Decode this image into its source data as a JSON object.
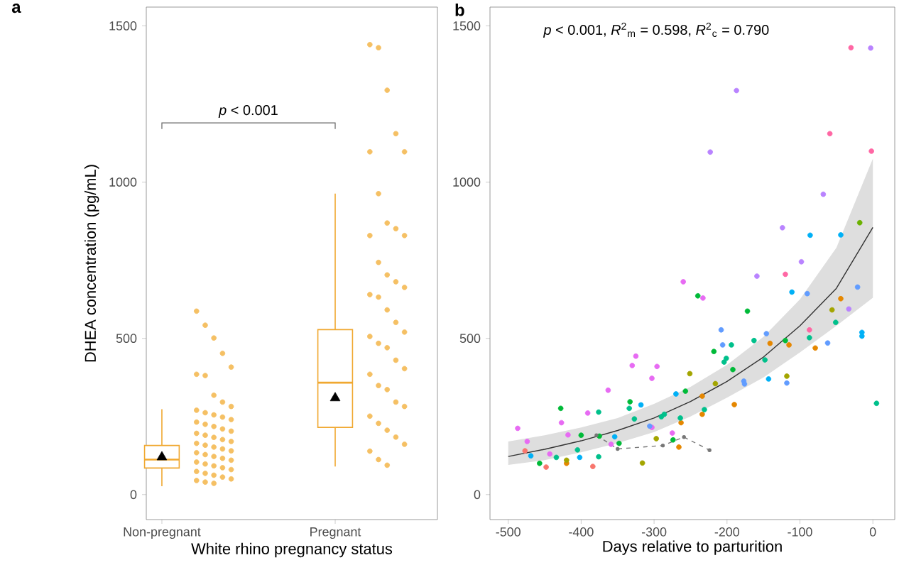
{
  "chart_data": [
    {
      "type": "box",
      "title": "a",
      "xlabel": "White rhino pregnancy status",
      "ylabel": "DHEA concentration (pg/mL)",
      "categories": [
        "Non-pregnant",
        "Pregnant"
      ],
      "color": "#f0a830",
      "marker": "circle",
      "boxes": [
        {
          "low": 27,
          "q1": 85,
          "median": 112,
          "q3": 157,
          "high": 273,
          "mean": 120
        },
        {
          "low": 90,
          "q1": 215,
          "median": 358,
          "q3": 528,
          "high": 963,
          "mean": 309
        }
      ],
      "series": [
        {
          "type": "scatter",
          "color": "#f5c064",
          "x": [
            "Non-pregnant",
            "Non-pregnant",
            "Non-pregnant",
            "Non-pregnant",
            "Non-pregnant",
            "Non-pregnant",
            "Non-pregnant",
            "Non-pregnant",
            "Non-pregnant",
            "Non-pregnant",
            "Non-pregnant",
            "Non-pregnant",
            "Non-pregnant",
            "Non-pregnant",
            "Non-pregnant",
            "Non-pregnant",
            "Non-pregnant",
            "Non-pregnant",
            "Non-pregnant",
            "Non-pregnant",
            "Non-pregnant",
            "Non-pregnant",
            "Non-pregnant",
            "Non-pregnant",
            "Non-pregnant",
            "Non-pregnant",
            "Non-pregnant",
            "Non-pregnant",
            "Non-pregnant",
            "Non-pregnant",
            "Non-pregnant",
            "Non-pregnant",
            "Non-pregnant",
            "Non-pregnant",
            "Non-pregnant",
            "Non-pregnant",
            "Non-pregnant",
            "Non-pregnant",
            "Non-pregnant",
            "Non-pregnant",
            "Non-pregnant",
            "Non-pregnant",
            "Non-pregnant",
            "Non-pregnant",
            "Non-pregnant",
            "Non-pregnant",
            "Non-pregnant",
            "Non-pregnant"
          ],
          "values": [
            587,
            542,
            501,
            452,
            408,
            385,
            381,
            318,
            296,
            282,
            270,
            262,
            255,
            248,
            240,
            232,
            225,
            218,
            210,
            203,
            196,
            190,
            183,
            176,
            170,
            164,
            158,
            152,
            146,
            140,
            134,
            128,
            122,
            116,
            110,
            104,
            98,
            92,
            86,
            80,
            74,
            68,
            62,
            56,
            50,
            45,
            40,
            36
          ]
        },
        {
          "type": "scatter",
          "color": "#f5c064",
          "x": [
            "Pregnant",
            "Pregnant",
            "Pregnant",
            "Pregnant",
            "Pregnant",
            "Pregnant",
            "Pregnant",
            "Pregnant",
            "Pregnant",
            "Pregnant",
            "Pregnant",
            "Pregnant",
            "Pregnant",
            "Pregnant",
            "Pregnant",
            "Pregnant",
            "Pregnant",
            "Pregnant",
            "Pregnant",
            "Pregnant",
            "Pregnant",
            "Pregnant",
            "Pregnant",
            "Pregnant",
            "Pregnant",
            "Pregnant",
            "Pregnant",
            "Pregnant",
            "Pregnant",
            "Pregnant",
            "Pregnant",
            "Pregnant",
            "Pregnant",
            "Pregnant",
            "Pregnant",
            "Pregnant",
            "Pregnant",
            "Pregnant"
          ],
          "values": [
            1440,
            1430,
            1294,
            1155,
            1097,
            1097,
            963,
            869,
            851,
            829,
            829,
            743,
            703,
            681,
            663,
            640,
            632,
            591,
            551,
            520,
            506,
            484,
            470,
            430,
            403,
            385,
            349,
            336,
            296,
            282,
            251,
            228,
            206,
            184,
            161,
            139,
            112,
            94
          ]
        }
      ],
      "ylim": [
        -80,
        1560
      ],
      "yticks": [
        0,
        500,
        1000,
        1500
      ],
      "annotations": [
        "*p* < 0.001"
      ]
    },
    {
      "type": "scatter",
      "title": "b",
      "xlabel": "Days relative to parturition",
      "marker": "circle",
      "xlim": [
        -525,
        30
      ],
      "xticks": [
        -500,
        -400,
        -300,
        -200,
        -100,
        0
      ],
      "ylim": [
        -80,
        1560
      ],
      "yticks": [
        0,
        500,
        1000,
        1500
      ],
      "annotations": [
        "*p* < 0.001, *R*$^{2}$$_{m}$ = 0.598, *R*$^{2}$$_{c}$ = 0.790"
      ],
      "series": [
        {
          "type": "line",
          "color": "#333333",
          "marker": "none",
          "x": [
            -500,
            -450,
            -400,
            -350,
            -300,
            -250,
            -200,
            -150,
            -100,
            -50,
            0
          ],
          "values": [
            122,
            145,
            172,
            205,
            245,
            298,
            362,
            440,
            540,
            660,
            855
          ],
          "lower": [
            95,
            110,
            135,
            165,
            200,
            250,
            310,
            375,
            455,
            540,
            630
          ],
          "upper": [
            170,
            190,
            215,
            245,
            290,
            345,
            415,
            505,
            625,
            790,
            1075
          ]
        },
        {
          "type": "scatter",
          "color": "#ff67a4",
          "x": [
            -30,
            -59,
            -2,
            -120,
            -87
          ],
          "values": [
            1430,
            1155,
            1099,
            705,
            527
          ]
        },
        {
          "type": "scatter",
          "color": "#b983ff",
          "x": [
            -3,
            -187,
            -223,
            -68,
            -124,
            -98,
            -159,
            -33
          ],
          "values": [
            1429,
            1293,
            1096,
            961,
            854,
            745,
            699,
            594
          ]
        },
        {
          "type": "scatter",
          "color": "#6bb100",
          "x": [
            -18
          ],
          "values": [
            870
          ]
        },
        {
          "type": "scatter",
          "color": "#00b0f6",
          "x": [
            -86,
            -44,
            -111,
            -15,
            -15,
            -143,
            -270,
            -318,
            -354,
            -469,
            -402
          ],
          "values": [
            830,
            831,
            648,
            519,
            507,
            370,
            322,
            287,
            185,
            124,
            119
          ]
        },
        {
          "type": "scatter",
          "color": "#e76bf3",
          "x": [
            -260,
            -233,
            -325,
            -330,
            -296,
            -303,
            -363,
            -391,
            -303,
            -427,
            -487,
            -418,
            -359,
            -474,
            -443,
            -275
          ],
          "values": [
            681,
            629,
            443,
            413,
            410,
            372,
            334,
            261,
            215,
            230,
            212,
            191,
            161,
            170,
            130,
            197
          ]
        },
        {
          "type": "scatter",
          "color": "#00ba38",
          "x": [
            -240,
            -172,
            -120,
            -218,
            -192,
            -257,
            -428,
            -333,
            -400,
            -375,
            -348,
            -457,
            -274
          ],
          "values": [
            636,
            587,
            493,
            458,
            400,
            331,
            276,
            297,
            190,
            187,
            164,
            100,
            175
          ]
        },
        {
          "type": "scatter",
          "color": "#619cff",
          "x": [
            -90,
            -21,
            -208,
            -146,
            -62,
            -206,
            -177,
            -176,
            -118,
            -306
          ],
          "values": [
            643,
            664,
            527,
            515,
            485,
            479,
            363,
            354,
            357,
            219
          ]
        },
        {
          "type": "scatter",
          "color": "#e58700",
          "x": [
            -44,
            -141,
            -115,
            -79,
            -234,
            -190,
            -234,
            -263,
            -420,
            -266
          ],
          "values": [
            627,
            484,
            479,
            469,
            315,
            288,
            257,
            230,
            100,
            152
          ]
        },
        {
          "type": "scatter",
          "color": "#a3a500",
          "x": [
            -56,
            -251,
            -118,
            -216,
            -420,
            -316,
            -297
          ],
          "values": [
            591,
            387,
            379,
            355,
            110,
            101,
            179
          ]
        },
        {
          "type": "scatter",
          "color": "#00c08b",
          "x": [
            -51,
            -87,
            -163,
            -194,
            -201,
            -204,
            -148,
            -376,
            -334,
            -327,
            -290,
            -286,
            -231,
            -264,
            -434,
            -405,
            -376,
            5
          ],
          "values": [
            551,
            502,
            493,
            479,
            436,
            424,
            431,
            264,
            276,
            242,
            249,
            257,
            272,
            245,
            119,
            143,
            121,
            292
          ]
        },
        {
          "type": "scatter",
          "color": "#f8766d",
          "x": [
            -477,
            -448,
            -384
          ],
          "values": [
            140,
            88,
            90
          ]
        },
        {
          "type": "line",
          "color": "#777777",
          "line_style": "dashed",
          "marker": "circle",
          "x": [
            -379,
            -350,
            -288,
            -259,
            -224
          ],
          "values": [
            190,
            146,
            157,
            184,
            142
          ]
        }
      ]
    }
  ]
}
